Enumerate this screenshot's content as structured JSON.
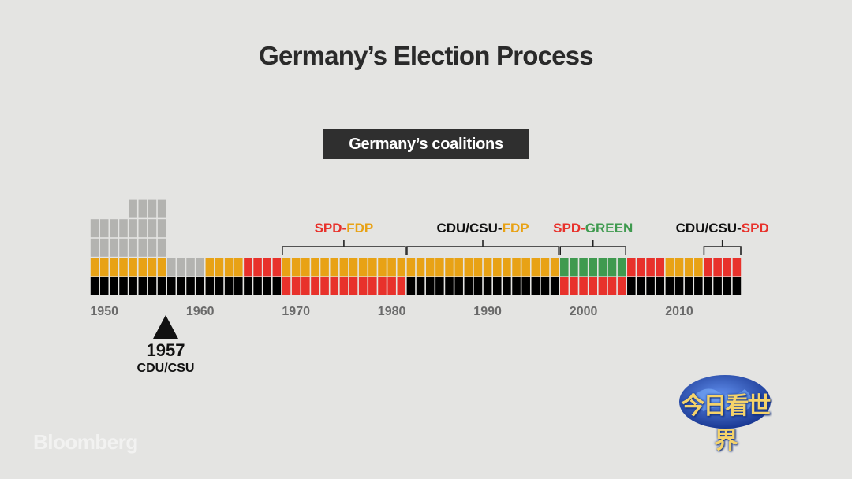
{
  "title": "Germany’s Election Process",
  "subtitle": "Germany’s coalitions",
  "colors": {
    "background": "#e4e4e2",
    "CDU/CSU": "#000000",
    "SPD": "#e8312b",
    "FDP": "#e8a215",
    "GREEN": "#3f9a4f",
    "other": "#b3b3b0"
  },
  "chart_data": {
    "type": "stacked-timeline",
    "x_range": [
      1949,
      2017
    ],
    "x_ticks": [
      "1950",
      "1960",
      "1970",
      "1980",
      "1990",
      "2000",
      "2010"
    ],
    "segments": [
      {
        "start": 1949,
        "end": 1953,
        "parties": [
          "CDU/CSU",
          "FDP",
          "other",
          "other"
        ]
      },
      {
        "start": 1953,
        "end": 1957,
        "parties": [
          "CDU/CSU",
          "FDP",
          "other",
          "other",
          "other"
        ]
      },
      {
        "start": 1957,
        "end": 1961,
        "parties": [
          "CDU/CSU",
          "other"
        ]
      },
      {
        "start": 1961,
        "end": 1965,
        "parties": [
          "CDU/CSU",
          "FDP"
        ]
      },
      {
        "start": 1965,
        "end": 1969,
        "parties": [
          "CDU/CSU",
          "SPD"
        ]
      },
      {
        "start": 1969,
        "end": 1982,
        "parties": [
          "SPD",
          "FDP"
        ]
      },
      {
        "start": 1982,
        "end": 1998,
        "parties": [
          "CDU/CSU",
          "FDP"
        ]
      },
      {
        "start": 1998,
        "end": 2005,
        "parties": [
          "SPD",
          "GREEN"
        ]
      },
      {
        "start": 2005,
        "end": 2009,
        "parties": [
          "CDU/CSU",
          "SPD"
        ]
      },
      {
        "start": 2009,
        "end": 2013,
        "parties": [
          "CDU/CSU",
          "FDP"
        ]
      },
      {
        "start": 2013,
        "end": 2017,
        "parties": [
          "CDU/CSU",
          "SPD"
        ]
      }
    ],
    "brackets": [
      {
        "start": 1969,
        "end": 1982,
        "parts": [
          {
            "text": "SPD",
            "color": "#e8312b"
          },
          {
            "text": "-",
            "color": "#e8312b"
          },
          {
            "text": "FDP",
            "color": "#e8a215"
          }
        ]
      },
      {
        "start": 1982,
        "end": 1998,
        "parts": [
          {
            "text": "CDU/CSU",
            "color": "#111111"
          },
          {
            "text": "-",
            "color": "#111111"
          },
          {
            "text": "FDP",
            "color": "#e8a215"
          }
        ]
      },
      {
        "start": 1998,
        "end": 2005,
        "parts": [
          {
            "text": "SPD",
            "color": "#e8312b"
          },
          {
            "text": "-",
            "color": "#e8312b"
          },
          {
            "text": "GREEN",
            "color": "#3f9a4f"
          }
        ]
      },
      {
        "start": 2013,
        "end": 2017,
        "parts": [
          {
            "text": "CDU/CSU",
            "color": "#111111"
          },
          {
            "text": "-",
            "color": "#111111"
          },
          {
            "text": "SPD",
            "color": "#e8312b"
          }
        ]
      }
    ],
    "event": {
      "year": "1957",
      "label": "CDU/CSU"
    }
  },
  "watermark": "Bloomberg",
  "channel_logo": {
    "text": "今日看世界",
    "icon": "globe-icon"
  }
}
